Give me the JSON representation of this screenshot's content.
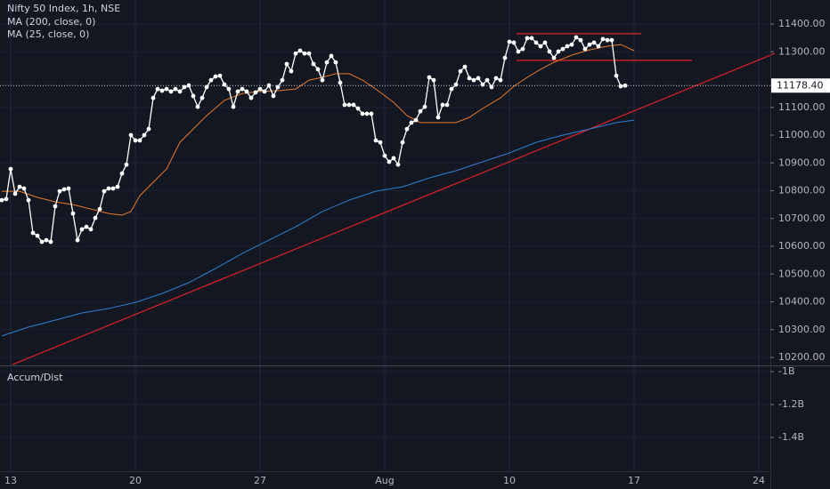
{
  "chart_data": {
    "type": "line",
    "title": "Nifty 50 Index, 1h, NSE",
    "xlim": [
      194.4,
      237.65
    ],
    "xticks": [
      {
        "value": 195,
        "label": "13"
      },
      {
        "value": 202,
        "label": "20"
      },
      {
        "value": 209,
        "label": "27"
      },
      {
        "value": 216,
        "label": "Aug"
      },
      {
        "value": 223,
        "label": "10"
      },
      {
        "value": 230,
        "label": "17"
      },
      {
        "value": 237,
        "label": "24"
      }
    ],
    "ylim": [
      10171.2,
      11486.4
    ],
    "yticks": [
      {
        "value": 10200,
        "label": "10200.00"
      },
      {
        "value": 10300,
        "label": "10300.00"
      },
      {
        "value": 10400,
        "label": "10400.00"
      },
      {
        "value": 10500,
        "label": "10500.00"
      },
      {
        "value": 10600,
        "label": "10600.00"
      },
      {
        "value": 10700,
        "label": "10700.00"
      },
      {
        "value": 10800,
        "label": "10800.00"
      },
      {
        "value": 10900,
        "label": "10900.00"
      },
      {
        "value": 11000,
        "label": "11000.00"
      },
      {
        "value": 11100,
        "label": "11100.00"
      },
      {
        "value": 11300,
        "label": "11300.00"
      },
      {
        "value": 11400,
        "label": "11400.00"
      }
    ],
    "grid": true,
    "series": [
      {
        "name": "Nifty 50 Index, 1h, NSE",
        "color": "#ffffff",
        "markers": true,
        "x": [
          194.5,
          194.75,
          195,
          195.25,
          195.5,
          195.75,
          196,
          196.25,
          196.5,
          196.75,
          197,
          197.25,
          197.5,
          197.75,
          198,
          198.25,
          198.5,
          198.75,
          199,
          199.25,
          199.5,
          199.75,
          200,
          200.25,
          200.5,
          200.75,
          201,
          201.25,
          201.5,
          201.75,
          202,
          202.25,
          202.5,
          202.75,
          203,
          203.25,
          203.5,
          203.75,
          204,
          204.25,
          204.5,
          204.75,
          205,
          205.25,
          205.5,
          205.75,
          206,
          206.25,
          206.5,
          206.75,
          207,
          207.25,
          207.5,
          207.75,
          208,
          208.25,
          208.5,
          208.75,
          209,
          209.25,
          209.5,
          209.75,
          210,
          210.25,
          210.5,
          210.75,
          211,
          211.25,
          211.5,
          211.75,
          212,
          212.25,
          212.5,
          212.75,
          213,
          213.25,
          213.5,
          213.75,
          214,
          214.25,
          214.5,
          214.75,
          215,
          215.25,
          215.5,
          215.75,
          216,
          216.25,
          216.5,
          216.75,
          217,
          217.25,
          217.5,
          217.75,
          218,
          218.25,
          218.5,
          218.75,
          219,
          219.25,
          219.5,
          219.75,
          220,
          220.25,
          220.5,
          220.75,
          221,
          221.25,
          221.5,
          221.75,
          222,
          222.25,
          222.5,
          222.75,
          223,
          223.25,
          223.5,
          223.75,
          224,
          224.25,
          224.5,
          224.75,
          225,
          225.25,
          225.5,
          225.75,
          226,
          226.25,
          226.5,
          226.75,
          227,
          227.25,
          227.5,
          227.75,
          228,
          228.25,
          228.5,
          228.75,
          229,
          229.25,
          229.5
        ],
        "values": [
          10766,
          10770,
          10878,
          10789,
          10814,
          10808,
          10766,
          10648,
          10638,
          10616,
          10622,
          10616,
          10744,
          10798,
          10805,
          10808,
          10718,
          10622,
          10661,
          10670,
          10661,
          10702,
          10734,
          10798,
          10808,
          10808,
          10814,
          10862,
          10894,
          11000,
          10981,
          10981,
          11000,
          11022,
          11134,
          11166,
          11160,
          11166,
          11157,
          11166,
          11157,
          11173,
          11179,
          11141,
          11102,
          11134,
          11173,
          11198,
          11211,
          11214,
          11182,
          11166,
          11102,
          11157,
          11166,
          11157,
          11134,
          11154,
          11166,
          11157,
          11179,
          11141,
          11173,
          11198,
          11256,
          11230,
          11294,
          11304,
          11294,
          11294,
          11256,
          11237,
          11198,
          11262,
          11285,
          11262,
          11189,
          11109,
          11109,
          11109,
          11096,
          11077,
          11077,
          11077,
          10981,
          10974,
          10926,
          10904,
          10917,
          10894,
          10974,
          11022,
          11045,
          11054,
          11086,
          11102,
          11208,
          11198,
          11064,
          11109,
          11109,
          11166,
          11182,
          11230,
          11246,
          11205,
          11198,
          11205,
          11182,
          11198,
          11173,
          11205,
          11198,
          11278,
          11336,
          11333,
          11301,
          11310,
          11349,
          11349,
          11333,
          11320,
          11333,
          11301,
          11278,
          11301,
          11310,
          11320,
          11326,
          11352,
          11342,
          11310,
          11326,
          11333,
          11320,
          11346,
          11342,
          11342,
          11214,
          11176,
          11178.4
        ]
      },
      {
        "name": "MA (200, close, 0)",
        "color": "#2f7fd0",
        "markers": false,
        "x": [
          194.5,
          196,
          197.5,
          199,
          200.5,
          202,
          203.5,
          205,
          206.5,
          208,
          209.5,
          211,
          212.5,
          214,
          215.5,
          217,
          218.5,
          220,
          221.5,
          223,
          224.5,
          226,
          227.5,
          229,
          230
        ],
        "values": [
          10277,
          10309,
          10334,
          10360,
          10376,
          10398,
          10430,
          10469,
          10520,
          10574,
          10622,
          10670,
          10725,
          10766,
          10798,
          10814,
          10846,
          10872,
          10904,
          10936,
          10974,
          11000,
          11022,
          11045,
          11054
        ]
      },
      {
        "name": "MA (25, close, 0)",
        "color": "#e8792a",
        "markers": false,
        "x": [
          194.5,
          195.5,
          196.5,
          197.5,
          198.5,
          199.5,
          200.5,
          201.25,
          201.75,
          202.25,
          203,
          203.75,
          204.5,
          205.25,
          206,
          207,
          208,
          209,
          210,
          211,
          211.75,
          212.5,
          213.25,
          214,
          214.75,
          215.5,
          216.5,
          217.25,
          218,
          219,
          220,
          220.75,
          221.5,
          222.5,
          223.25,
          224,
          224.75,
          225.5,
          226.5,
          227.5,
          228.5,
          229.25,
          230
        ],
        "values": [
          10798,
          10798,
          10776,
          10760,
          10750,
          10734,
          10718,
          10712,
          10725,
          10782,
          10830,
          10878,
          10974,
          11022,
          11070,
          11125,
          11150,
          11157,
          11160,
          11166,
          11198,
          11208,
          11221,
          11221,
          11198,
          11166,
          11118,
          11070,
          11045,
          11045,
          11045,
          11064,
          11096,
          11134,
          11176,
          11208,
          11237,
          11262,
          11288,
          11307,
          11320,
          11326,
          11304
        ]
      }
    ],
    "trend_lines": [
      {
        "color": "#e0202a",
        "x": [
          195.1,
          237.9
        ],
        "values": [
          10174,
          11294
        ]
      },
      {
        "color": "#e0202a",
        "x": [
          223.4,
          230.4
        ],
        "values": [
          11365,
          11365
        ]
      },
      {
        "color": "#e0202a",
        "x": [
          223.4,
          233.25
        ],
        "values": [
          11269,
          11269
        ]
      }
    ],
    "current_price": {
      "value": 11178.4,
      "label": "11178.40"
    },
    "lower_pane": {
      "title": "Accum/Dist",
      "ylim": [
        -1605000000,
        -968000000
      ],
      "yticks": [
        {
          "value": -1000000000,
          "label": "-1B"
        },
        {
          "value": -1200000000,
          "label": "-1.2B"
        },
        {
          "value": -1400000000,
          "label": "-1.4B"
        }
      ]
    }
  }
}
